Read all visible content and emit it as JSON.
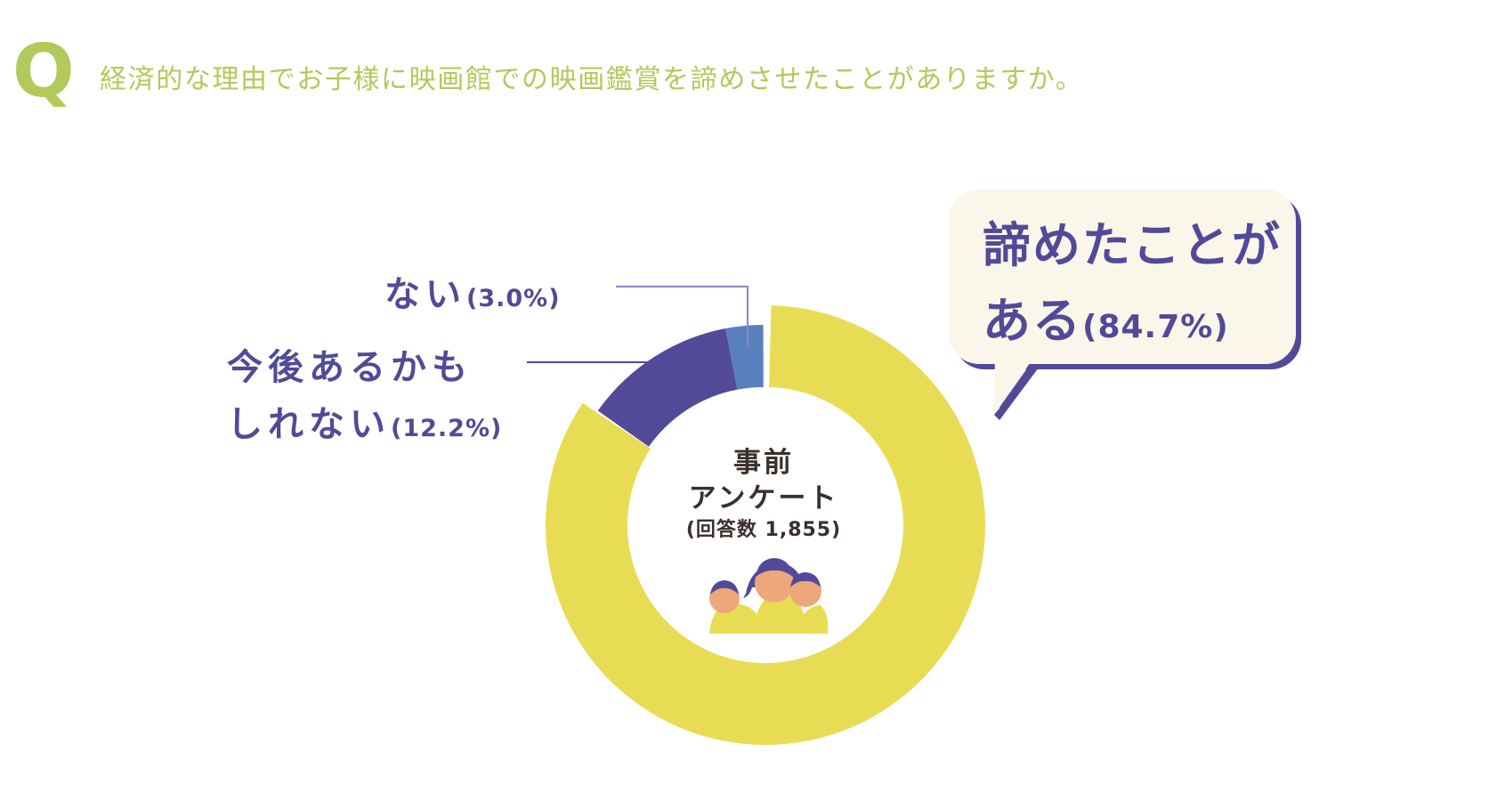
{
  "question": {
    "mark": "Q",
    "text": "経済的な理由でお子様に映画館での映画鑑賞を諦めさせたことがありますか。"
  },
  "colors": {
    "question": "#b3c95a",
    "yes": "#e8dc55",
    "maybe": "#524a98",
    "no": "#5a7fbd",
    "label": "#524a98",
    "bubble_bg": "#faf6ea",
    "center_text": "#3a302c",
    "skin": "#eea77a"
  },
  "labels": {
    "no": {
      "main": "ない",
      "pct": "(3.0%)"
    },
    "maybe": {
      "line1": "今後あるかも",
      "line2": "しれない",
      "pct": "(12.2%)"
    },
    "yes": {
      "line1": "諦めたことが",
      "line2": "ある",
      "pct": "(84.7%)"
    }
  },
  "center": {
    "line1": "事前",
    "line2": "アンケート",
    "line3": "(回答数 1,855)"
  },
  "chart_data": {
    "type": "pie",
    "variant": "donut",
    "title": "経済的な理由でお子様に映画館での映画鑑賞を諦めさせたことがありますか。",
    "center_label": "事前アンケート (回答数 1,855)",
    "total_responses": 1855,
    "categories": [
      "諦めたことがある",
      "今後あるかもしれない",
      "ない"
    ],
    "values": [
      84.7,
      12.2,
      3.0
    ],
    "unit": "%",
    "colors": [
      "#e8dc55",
      "#524a98",
      "#5a7fbd"
    ],
    "legend": "callout labels",
    "highlighted": "諦めたことがある"
  }
}
